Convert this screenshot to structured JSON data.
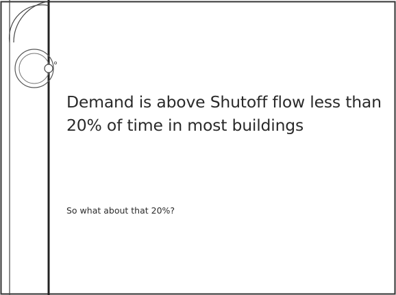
{
  "title": "Demand is above Shutoff flow less than 20% of time in most buildings",
  "body": [
    "So what about that 20%?"
  ]
}
